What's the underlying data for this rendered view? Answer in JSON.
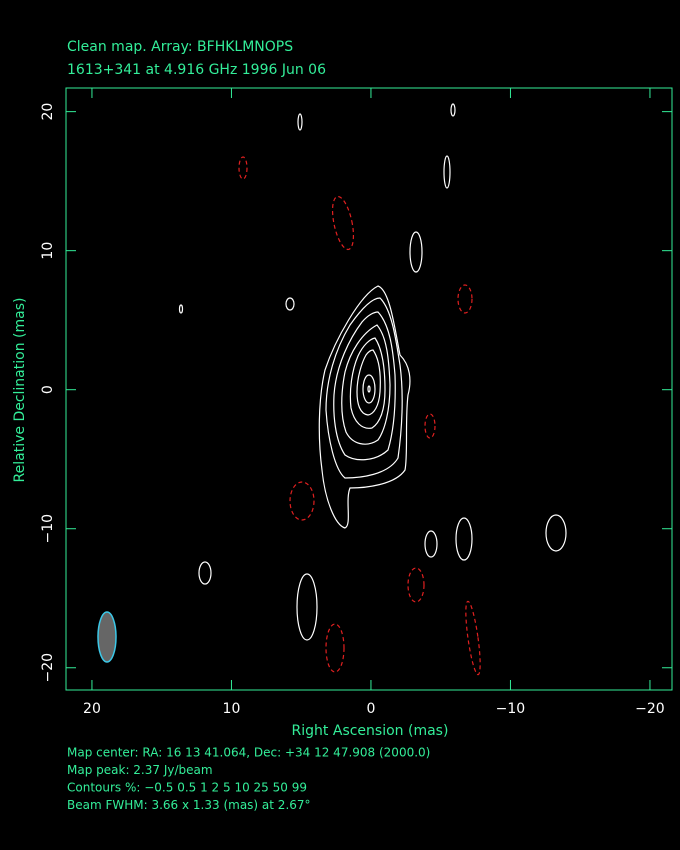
{
  "chart_data": {
    "type": "contour",
    "title": "Clean map.  Array: BFHKLMNOPS",
    "subtitle": "1613+341 at 4.916 GHz 1996 Jun 06",
    "xlabel": "Right Ascension  (mas)",
    "ylabel": "Relative Declination  (mas)",
    "xlim": [
      21.86,
      -21.58
    ],
    "ylim": [
      -21.6,
      21.7
    ],
    "xticks": [
      20,
      10,
      0,
      {
        "value": -10,
        "label": "−10"
      },
      {
        "value": -20,
        "label": "−20"
      }
    ],
    "yticks": [
      {
        "value": -20,
        "label": "−20"
      },
      {
        "value": -10,
        "label": "−10"
      },
      0,
      10,
      20
    ],
    "frame_color": "#33ee99",
    "text_color": "#33ee99",
    "notes": [
      "Map center:  RA: 16 13 41.064,  Dec: +34 12 47.908 (2000.0)",
      "Map peak: 2.37 Jy/beam",
      "Contours %: −0.5 0.5 1 2 5 10 25 50 99",
      "Beam FWHM: 3.66 x 1.33 (mas) at 2.67°"
    ]
  }
}
